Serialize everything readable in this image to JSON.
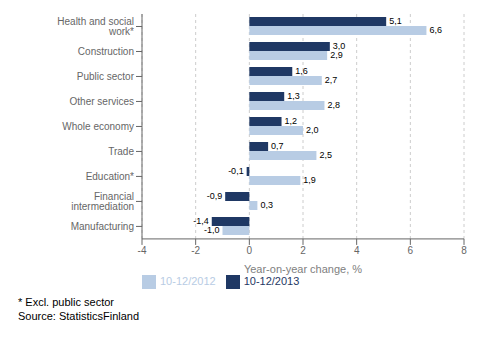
{
  "chart_data": {
    "type": "bar",
    "orientation": "horizontal",
    "categories": [
      "Health and social work*",
      "Construction",
      "Public sector",
      "Other services",
      "Whole economy",
      "Trade",
      "Education*",
      "Financial intermediation",
      "Manufacturing"
    ],
    "series": [
      {
        "name": "10-12/2013",
        "color": "#1F3864",
        "values": [
          5.1,
          3.0,
          1.6,
          1.3,
          1.2,
          0.7,
          -0.1,
          -0.9,
          -1.4
        ],
        "value_labels": [
          "5,1",
          "3,0",
          "1,6",
          "1,3",
          "1,2",
          "0,7",
          "-0,1",
          "-0,9",
          "-1,4"
        ]
      },
      {
        "name": "10-12/2012",
        "color": "#B8CCE4",
        "values": [
          6.6,
          2.9,
          2.7,
          2.8,
          2.0,
          2.5,
          1.9,
          0.3,
          -1.0
        ],
        "value_labels": [
          "6,6",
          "2,9",
          "2,7",
          "2,8",
          "2,0",
          "2,5",
          "1,9",
          "0,3",
          "-1,0"
        ]
      }
    ],
    "xlabel": "Year-on-year change, %",
    "xlim": [
      -4,
      8
    ],
    "xticks": [
      -4,
      -2,
      0,
      2,
      4,
      6,
      8
    ],
    "grid": true,
    "legend": "lower left",
    "data_labels": true,
    "annotations": [
      "* Excl. public sector",
      "Source: StatisticsFinland"
    ]
  }
}
